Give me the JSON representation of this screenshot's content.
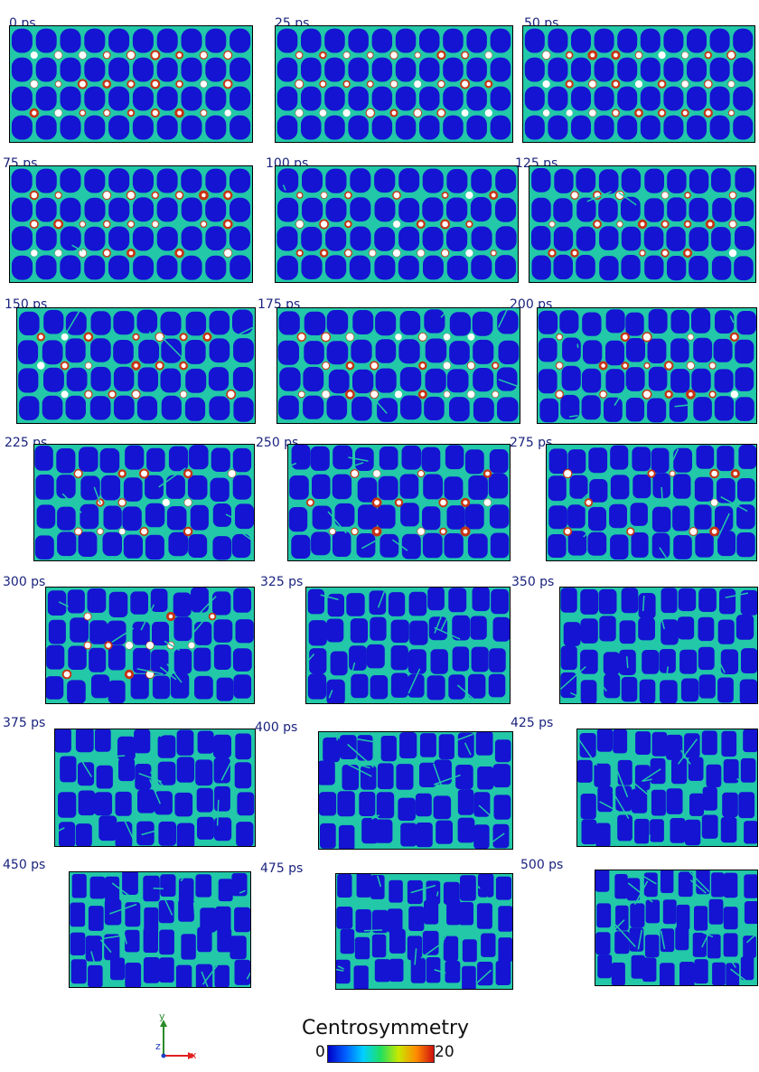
{
  "frames": [
    {
      "label": "0 ps",
      "ordered": 1.0
    },
    {
      "label": "25 ps",
      "ordered": 1.0
    },
    {
      "label": "50 ps",
      "ordered": 1.0
    },
    {
      "label": "75 ps",
      "ordered": 0.95
    },
    {
      "label": "100 ps",
      "ordered": 0.9
    },
    {
      "label": "125 ps",
      "ordered": 0.85
    },
    {
      "label": "150 ps",
      "ordered": 0.75
    },
    {
      "label": "175 ps",
      "ordered": 0.7
    },
    {
      "label": "200 ps",
      "ordered": 0.65
    },
    {
      "label": "225 ps",
      "ordered": 0.55
    },
    {
      "label": "250 ps",
      "ordered": 0.5
    },
    {
      "label": "275 ps",
      "ordered": 0.45
    },
    {
      "label": "300 ps",
      "ordered": 0.35
    },
    {
      "label": "325 ps",
      "ordered": 0.3
    },
    {
      "label": "350 ps",
      "ordered": 0.25
    },
    {
      "label": "375 ps",
      "ordered": 0.15
    },
    {
      "label": "400 ps",
      "ordered": 0.1
    },
    {
      "label": "425 ps",
      "ordered": 0.08
    },
    {
      "label": "450 ps",
      "ordered": 0.0
    },
    {
      "label": "475 ps",
      "ordered": 0.0
    },
    {
      "label": "500 ps",
      "ordered": 0.0
    }
  ],
  "legend": {
    "title": "Centrosymmetry",
    "min_label": "0",
    "max_label": "20",
    "colors": [
      "#0000c8",
      "#0060ff",
      "#00d0ff",
      "#20e060",
      "#c8e800",
      "#ff8c00",
      "#d01010"
    ]
  },
  "axes": {
    "y_label": "y",
    "z_label": "z",
    "x_label": "x",
    "y_color": "#2a8a2a",
    "z_color": "#2040c0",
    "x_color": "#e02020"
  },
  "colors": {
    "grain": "#1414d2",
    "boundary": "#22c8a8",
    "defect": "#c83214",
    "void": "#ffffff",
    "label": "#1a237e"
  }
}
